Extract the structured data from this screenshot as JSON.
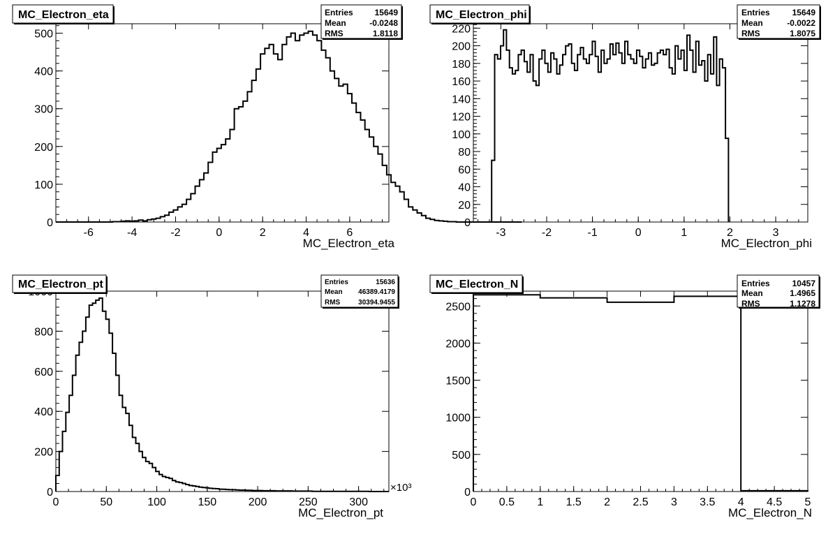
{
  "chart_data": [
    {
      "type": "histogram",
      "title": "MC_Electron_eta",
      "xlabel": "MC_Electron_eta",
      "ylabel": "",
      "xlim": [
        -7.5,
        7.8
      ],
      "ylim": [
        0,
        525
      ],
      "xticks": [
        -6,
        -4,
        -2,
        0,
        2,
        4,
        6
      ],
      "xtick_labels": [
        "-6",
        "-4",
        "-2",
        "0",
        "2",
        "4",
        "6"
      ],
      "yticks": [
        0,
        100,
        200,
        300,
        400,
        500
      ],
      "ytick_labels": [
        "0",
        "100",
        "200",
        "300",
        "400",
        "500"
      ],
      "grid": false,
      "stats": {
        "entries_label": "Entries",
        "entries": "15649",
        "mean_label": "Mean",
        "mean": "-0.0248",
        "rms_label": "RMS",
        "rms": "1.8118"
      },
      "bin_start": -7.5,
      "bin_width": 0.2,
      "values": [
        0,
        0,
        0,
        0,
        0,
        0,
        0,
        0,
        0,
        0,
        0,
        0,
        0,
        1,
        1,
        2,
        3,
        2,
        3,
        5,
        3,
        6,
        8,
        10,
        14,
        18,
        26,
        32,
        40,
        47,
        60,
        75,
        95,
        112,
        130,
        158,
        185,
        195,
        205,
        220,
        245,
        300,
        305,
        320,
        345,
        375,
        405,
        445,
        460,
        470,
        445,
        430,
        470,
        490,
        500,
        480,
        495,
        500,
        505,
        495,
        480,
        455,
        435,
        400,
        380,
        360,
        365,
        340,
        315,
        290,
        270,
        245,
        225,
        200,
        180,
        150,
        125,
        105,
        95,
        80,
        60,
        40,
        32,
        24,
        17,
        10,
        7,
        4,
        3,
        2,
        1,
        1,
        0,
        0,
        0,
        0,
        0,
        0,
        0,
        0,
        0,
        0,
        0,
        0,
        0,
        0,
        0
      ]
    },
    {
      "type": "histogram",
      "title": "MC_Electron_phi",
      "xlabel": "MC_Electron_phi",
      "ylabel": "",
      "xlim": [
        -3.6,
        3.7
      ],
      "ylim": [
        0,
        225
      ],
      "xticks": [
        -3,
        -2,
        -1,
        0,
        1,
        2,
        3
      ],
      "xtick_labels": [
        "-3",
        "-2",
        "-1",
        "0",
        "1",
        "2",
        "3"
      ],
      "yticks": [
        0,
        20,
        40,
        60,
        80,
        100,
        120,
        140,
        160,
        180,
        200,
        220
      ],
      "ytick_labels": [
        "0",
        "20",
        "40",
        "60",
        "80",
        "100",
        "120",
        "140",
        "160",
        "180",
        "200",
        "220"
      ],
      "grid": false,
      "stats": {
        "entries_label": "Entries",
        "entries": "15649",
        "mean_label": "Mean",
        "mean": "-0.0022",
        "rms_label": "RMS",
        "rms": "1.8075"
      },
      "bin_start": -3.2,
      "bin_width": 0.0646,
      "values": [
        70,
        190,
        185,
        200,
        218,
        195,
        175,
        168,
        172,
        190,
        195,
        182,
        170,
        190,
        160,
        155,
        185,
        195,
        180,
        170,
        192,
        185,
        168,
        178,
        190,
        200,
        202,
        180,
        172,
        190,
        198,
        185,
        180,
        190,
        205,
        188,
        170,
        195,
        180,
        185,
        202,
        190,
        203,
        192,
        180,
        205,
        190,
        185,
        180,
        195,
        188,
        175,
        185,
        192,
        178,
        180,
        192,
        195,
        190,
        196,
        175,
        168,
        200,
        185,
        195,
        172,
        212,
        195,
        170,
        205,
        178,
        183,
        160,
        190,
        168,
        210,
        155,
        185,
        175,
        95
      ]
    },
    {
      "type": "histogram",
      "title": "MC_Electron_pt",
      "xlabel": "MC_Electron_pt",
      "ylabel": "",
      "x_multiplier": "×10³",
      "xlim": [
        0,
        330
      ],
      "ylim": [
        0,
        1000
      ],
      "xticks": [
        0,
        50,
        100,
        150,
        200,
        250,
        300
      ],
      "xtick_labels": [
        "0",
        "50",
        "100",
        "150",
        "200",
        "250",
        "300"
      ],
      "yticks": [
        0,
        200,
        400,
        600,
        800,
        1000
      ],
      "ytick_labels": [
        "0",
        "200",
        "400",
        "600",
        "800",
        "1000"
      ],
      "grid": false,
      "stats": {
        "entries_label": "Entries",
        "entries": "15636",
        "mean_label": "Mean",
        "mean": "46389.4179",
        "rms_label": "RMS",
        "rms": "30394.9455"
      },
      "bin_start": 0,
      "bin_width": 3.3,
      "values": [
        80,
        200,
        300,
        395,
        480,
        580,
        680,
        745,
        800,
        870,
        930,
        940,
        955,
        965,
        900,
        860,
        790,
        690,
        580,
        480,
        420,
        390,
        330,
        270,
        240,
        200,
        170,
        150,
        140,
        120,
        100,
        85,
        75,
        70,
        65,
        55,
        48,
        45,
        40,
        35,
        30,
        28,
        25,
        22,
        20,
        18,
        16,
        15,
        14,
        12,
        11,
        10,
        9,
        9,
        8,
        7,
        7,
        6,
        6,
        5,
        5,
        5,
        4,
        4,
        4,
        4,
        3,
        3,
        3,
        3,
        3,
        2,
        2,
        2,
        2,
        2,
        2,
        1,
        1,
        1,
        1,
        1,
        1,
        1,
        1,
        1,
        1,
        1,
        1,
        1,
        1,
        1,
        1,
        1,
        0,
        0,
        0,
        0,
        0,
        0
      ]
    },
    {
      "type": "histogram",
      "title": "MC_Electron_N",
      "xlabel": "MC_Electron_N",
      "ylabel": "",
      "xlim": [
        0,
        5
      ],
      "ylim": [
        0,
        2700
      ],
      "xticks": [
        0,
        0.5,
        1,
        1.5,
        2,
        2.5,
        3,
        3.5,
        4,
        4.5,
        5
      ],
      "xtick_labels": [
        "0",
        "0.5",
        "1",
        "1.5",
        "2",
        "2.5",
        "3",
        "3.5",
        "4",
        "4.5",
        "5"
      ],
      "yticks": [
        0,
        500,
        1000,
        1500,
        2000,
        2500
      ],
      "ytick_labels": [
        "0",
        "500",
        "1000",
        "1500",
        "2000",
        "2500"
      ],
      "grid": false,
      "stats": {
        "entries_label": "Entries",
        "entries": "10457",
        "mean_label": "Mean",
        "mean": "1.4965",
        "rms_label": "RMS",
        "rms": "1.1278"
      },
      "bin_start": 0,
      "bin_width": 1,
      "values": [
        2650,
        2610,
        2550,
        2630,
        10
      ]
    }
  ]
}
